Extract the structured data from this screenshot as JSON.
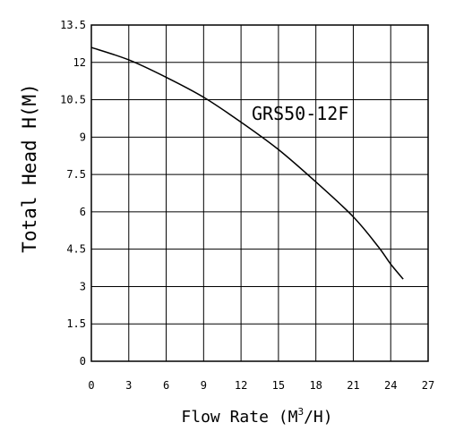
{
  "chart_data": {
    "type": "line",
    "xlabel": "Flow Rate (M",
    "xlabel_sup": "3",
    "xlabel_tail": "/H)",
    "ylabel": "Total Head H(M)",
    "annotation": "GRS50-12F",
    "xlim": [
      0,
      27
    ],
    "ylim": [
      0,
      13.5
    ],
    "x_ticks": [
      "0",
      "3",
      "6",
      "9",
      "12",
      "15",
      "18",
      "21",
      "24",
      "27"
    ],
    "y_ticks": [
      "0",
      "1.5",
      "3",
      "4.5",
      "6",
      "7.5",
      "9",
      "10.5",
      "12",
      "13.5"
    ],
    "grid": true,
    "series": [
      {
        "x": [
          0,
          3,
          6,
          9,
          12,
          15,
          18,
          21,
          23,
          24,
          25
        ],
        "y": [
          12.6,
          12.1,
          11.4,
          10.6,
          9.6,
          8.5,
          7.2,
          5.8,
          4.6,
          3.9,
          3.3
        ]
      }
    ]
  }
}
